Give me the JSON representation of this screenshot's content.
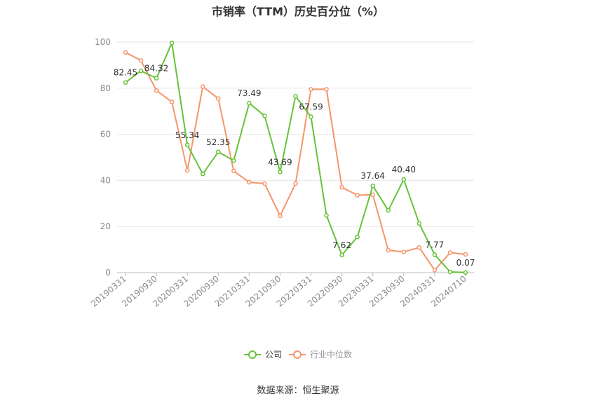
{
  "chart_data": {
    "type": "line",
    "title": "市销率（TTM）历史百分位（%）",
    "source": "数据来源：恒生聚源",
    "ylim": [
      0,
      100
    ],
    "yticks": [
      0,
      20,
      40,
      60,
      80,
      100
    ],
    "grid": true,
    "legend_position": "bottom",
    "x_tick_labels": [
      "20190331",
      "20190930",
      "20200331",
      "20200930",
      "20210331",
      "20210930",
      "20220331",
      "20220930",
      "20230331",
      "20230930",
      "20240331",
      "20240710"
    ],
    "x": [
      "20190331",
      "20190630",
      "20190930",
      "20191231",
      "20200331",
      "20200630",
      "20200930",
      "20201231",
      "20210331",
      "20210630",
      "20210930",
      "20211231",
      "20220331",
      "20220630",
      "20220930",
      "20221231",
      "20230331",
      "20230630",
      "20230930",
      "20231231",
      "20240331",
      "20240630",
      "20240710"
    ],
    "series": [
      {
        "name": "公司",
        "color": "#67c23a",
        "values": [
          82.45,
          87.5,
          84.32,
          99.6,
          55.34,
          42.8,
          52.35,
          48.6,
          73.49,
          68.0,
          43.69,
          76.5,
          67.59,
          24.8,
          7.62,
          15.5,
          37.64,
          27.0,
          40.4,
          21.3,
          7.77,
          0.3,
          0.07
        ],
        "labels": {
          "0": "82.45",
          "2": "84.32",
          "4": "55.34",
          "6": "52.35",
          "8": "73.49",
          "10": "43.69",
          "12": "67.59",
          "14": "7.62",
          "16": "37.64",
          "18": "40.40",
          "20": "7.77",
          "22": "0.07"
        }
      },
      {
        "name": "行业中位数",
        "color": "#f4956b",
        "values": [
          95.5,
          92.0,
          79.0,
          74.0,
          44.3,
          80.7,
          75.5,
          44.1,
          39.2,
          38.6,
          24.6,
          38.6,
          79.5,
          79.5,
          37.0,
          33.6,
          33.8,
          9.7,
          9.0,
          10.9,
          1.1,
          8.7,
          7.9
        ]
      }
    ]
  }
}
